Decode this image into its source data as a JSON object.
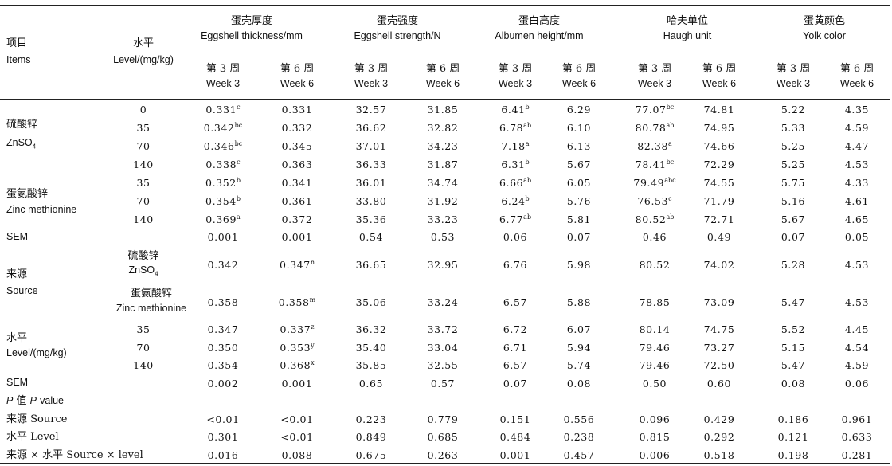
{
  "header": {
    "items_zh": "项目",
    "items_en": "Items",
    "level_zh": "水平",
    "level_en": "Level/(mg/kg)",
    "groups": [
      {
        "zh": "蛋壳厚度",
        "en": "Eggshell thickness/mm"
      },
      {
        "zh": "蛋壳强度",
        "en": "Eggshell strength/N"
      },
      {
        "zh": "蛋白高度",
        "en": "Albumen height/mm"
      },
      {
        "zh": "哈夫单位",
        "en": "Haugh unit"
      },
      {
        "zh": "蛋黄颜色",
        "en": "Yolk color"
      }
    ],
    "week3_zh": "第 3 周",
    "week3_en": "Week 3",
    "week6_zh": "第 6 周",
    "week6_en": "Week 6"
  },
  "labels": {
    "znso4_zh": "硫酸锌",
    "znso4_en_main": "ZnSO",
    "znso4_en_sub": "4",
    "znmet_zh": "蛋氨酸锌",
    "znmet_en": "Zinc methionine",
    "sem": "SEM",
    "source_zh": "来源",
    "source_en": "Source",
    "level_zh": "水平",
    "level_en": "Level/(mg/kg)",
    "pvalue_p": "P",
    "pvalue_zh": " 值 ",
    "pvalue_en_p": "P",
    "pvalue_en": "-value",
    "p_source": "来源 Source",
    "p_level": "水平 Level",
    "p_inter": "来源 × 水平 Source × level"
  },
  "rows": [
    {
      "level": "0",
      "cells": [
        [
          "0.331",
          "c"
        ],
        [
          "0.331",
          ""
        ],
        [
          "32.57",
          ""
        ],
        [
          "31.85",
          ""
        ],
        [
          "6.41",
          "b"
        ],
        [
          "6.29",
          ""
        ],
        [
          "77.07",
          "bc"
        ],
        [
          "74.81",
          ""
        ],
        [
          "5.22",
          ""
        ],
        [
          "4.35",
          ""
        ]
      ]
    },
    {
      "level": "35",
      "cells": [
        [
          "0.342",
          "bc"
        ],
        [
          "0.332",
          ""
        ],
        [
          "36.62",
          ""
        ],
        [
          "32.82",
          ""
        ],
        [
          "6.78",
          "ab"
        ],
        [
          "6.10",
          ""
        ],
        [
          "80.78",
          "ab"
        ],
        [
          "74.95",
          ""
        ],
        [
          "5.33",
          ""
        ],
        [
          "4.59",
          ""
        ]
      ]
    },
    {
      "level": "70",
      "cells": [
        [
          "0.346",
          "bc"
        ],
        [
          "0.345",
          ""
        ],
        [
          "37.01",
          ""
        ],
        [
          "34.23",
          ""
        ],
        [
          "7.18",
          "a"
        ],
        [
          "6.13",
          ""
        ],
        [
          "82.38",
          "a"
        ],
        [
          "74.66",
          ""
        ],
        [
          "5.25",
          ""
        ],
        [
          "4.47",
          ""
        ]
      ]
    },
    {
      "level": "140",
      "cells": [
        [
          "0.338",
          "c"
        ],
        [
          "0.363",
          ""
        ],
        [
          "36.33",
          ""
        ],
        [
          "31.87",
          ""
        ],
        [
          "6.31",
          "b"
        ],
        [
          "5.67",
          ""
        ],
        [
          "78.41",
          "bc"
        ],
        [
          "72.29",
          ""
        ],
        [
          "5.25",
          ""
        ],
        [
          "4.53",
          ""
        ]
      ]
    },
    {
      "level": "35",
      "cells": [
        [
          "0.352",
          "b"
        ],
        [
          "0.341",
          ""
        ],
        [
          "36.01",
          ""
        ],
        [
          "34.74",
          ""
        ],
        [
          "6.66",
          "ab"
        ],
        [
          "6.05",
          ""
        ],
        [
          "79.49",
          "abc"
        ],
        [
          "74.55",
          ""
        ],
        [
          "5.75",
          ""
        ],
        [
          "4.33",
          ""
        ]
      ]
    },
    {
      "level": "70",
      "cells": [
        [
          "0.354",
          "b"
        ],
        [
          "0.361",
          ""
        ],
        [
          "33.80",
          ""
        ],
        [
          "31.92",
          ""
        ],
        [
          "6.24",
          "b"
        ],
        [
          "5.76",
          ""
        ],
        [
          "76.53",
          "c"
        ],
        [
          "71.79",
          ""
        ],
        [
          "5.16",
          ""
        ],
        [
          "4.61",
          ""
        ]
      ]
    },
    {
      "level": "140",
      "cells": [
        [
          "0.369",
          "a"
        ],
        [
          "0.372",
          ""
        ],
        [
          "35.36",
          ""
        ],
        [
          "33.23",
          ""
        ],
        [
          "6.77",
          "ab"
        ],
        [
          "5.81",
          ""
        ],
        [
          "80.52",
          "ab"
        ],
        [
          "72.71",
          ""
        ],
        [
          "5.67",
          ""
        ],
        [
          "4.65",
          ""
        ]
      ]
    },
    {
      "level": "",
      "cells": [
        [
          "0.001",
          ""
        ],
        [
          "0.001",
          ""
        ],
        [
          "0.54",
          ""
        ],
        [
          "0.53",
          ""
        ],
        [
          "0.06",
          ""
        ],
        [
          "0.07",
          ""
        ],
        [
          "0.46",
          ""
        ],
        [
          "0.49",
          ""
        ],
        [
          "0.07",
          ""
        ],
        [
          "0.05",
          ""
        ]
      ]
    },
    {
      "level": "",
      "cells": [
        [
          "0.342",
          ""
        ],
        [
          "0.347",
          "n"
        ],
        [
          "36.65",
          ""
        ],
        [
          "32.95",
          ""
        ],
        [
          "6.76",
          ""
        ],
        [
          "5.98",
          ""
        ],
        [
          "80.52",
          ""
        ],
        [
          "74.02",
          ""
        ],
        [
          "5.28",
          ""
        ],
        [
          "4.53",
          ""
        ]
      ]
    },
    {
      "level": "",
      "cells": [
        [
          "0.358",
          ""
        ],
        [
          "0.358",
          "m"
        ],
        [
          "35.06",
          ""
        ],
        [
          "33.24",
          ""
        ],
        [
          "6.57",
          ""
        ],
        [
          "5.88",
          ""
        ],
        [
          "78.85",
          ""
        ],
        [
          "73.09",
          ""
        ],
        [
          "5.47",
          ""
        ],
        [
          "4.53",
          ""
        ]
      ]
    },
    {
      "level": "35",
      "cells": [
        [
          "0.347",
          ""
        ],
        [
          "0.337",
          "z"
        ],
        [
          "36.32",
          ""
        ],
        [
          "33.72",
          ""
        ],
        [
          "6.72",
          ""
        ],
        [
          "6.07",
          ""
        ],
        [
          "80.14",
          ""
        ],
        [
          "74.75",
          ""
        ],
        [
          "5.52",
          ""
        ],
        [
          "4.45",
          ""
        ]
      ]
    },
    {
      "level": "70",
      "cells": [
        [
          "0.350",
          ""
        ],
        [
          "0.353",
          "y"
        ],
        [
          "35.40",
          ""
        ],
        [
          "33.04",
          ""
        ],
        [
          "6.71",
          ""
        ],
        [
          "5.94",
          ""
        ],
        [
          "79.46",
          ""
        ],
        [
          "73.27",
          ""
        ],
        [
          "5.15",
          ""
        ],
        [
          "4.54",
          ""
        ]
      ]
    },
    {
      "level": "140",
      "cells": [
        [
          "0.354",
          ""
        ],
        [
          "0.368",
          "x"
        ],
        [
          "35.85",
          ""
        ],
        [
          "32.55",
          ""
        ],
        [
          "6.57",
          ""
        ],
        [
          "5.74",
          ""
        ],
        [
          "79.46",
          ""
        ],
        [
          "72.50",
          ""
        ],
        [
          "5.47",
          ""
        ],
        [
          "4.59",
          ""
        ]
      ]
    },
    {
      "level": "",
      "cells": [
        [
          "0.002",
          ""
        ],
        [
          "0.001",
          ""
        ],
        [
          "0.65",
          ""
        ],
        [
          "0.57",
          ""
        ],
        [
          "0.07",
          ""
        ],
        [
          "0.08",
          ""
        ],
        [
          "0.50",
          ""
        ],
        [
          "0.60",
          ""
        ],
        [
          "0.08",
          ""
        ],
        [
          "0.06",
          ""
        ]
      ]
    },
    {
      "level": "",
      "cells": [
        [
          "<0.01",
          ""
        ],
        [
          "<0.01",
          ""
        ],
        [
          "0.223",
          ""
        ],
        [
          "0.779",
          ""
        ],
        [
          "0.151",
          ""
        ],
        [
          "0.556",
          ""
        ],
        [
          "0.096",
          ""
        ],
        [
          "0.429",
          ""
        ],
        [
          "0.186",
          ""
        ],
        [
          "0.961",
          ""
        ]
      ]
    },
    {
      "level": "",
      "cells": [
        [
          "0.301",
          ""
        ],
        [
          "<0.01",
          ""
        ],
        [
          "0.849",
          ""
        ],
        [
          "0.685",
          ""
        ],
        [
          "0.484",
          ""
        ],
        [
          "0.238",
          ""
        ],
        [
          "0.815",
          ""
        ],
        [
          "0.292",
          ""
        ],
        [
          "0.121",
          ""
        ],
        [
          "0.633",
          ""
        ]
      ]
    },
    {
      "level": "",
      "cells": [
        [
          "0.016",
          ""
        ],
        [
          "0.088",
          ""
        ],
        [
          "0.675",
          ""
        ],
        [
          "0.263",
          ""
        ],
        [
          "0.001",
          ""
        ],
        [
          "0.457",
          ""
        ],
        [
          "0.006",
          ""
        ],
        [
          "0.518",
          ""
        ],
        [
          "0.198",
          ""
        ],
        [
          "0.281",
          ""
        ]
      ]
    }
  ]
}
